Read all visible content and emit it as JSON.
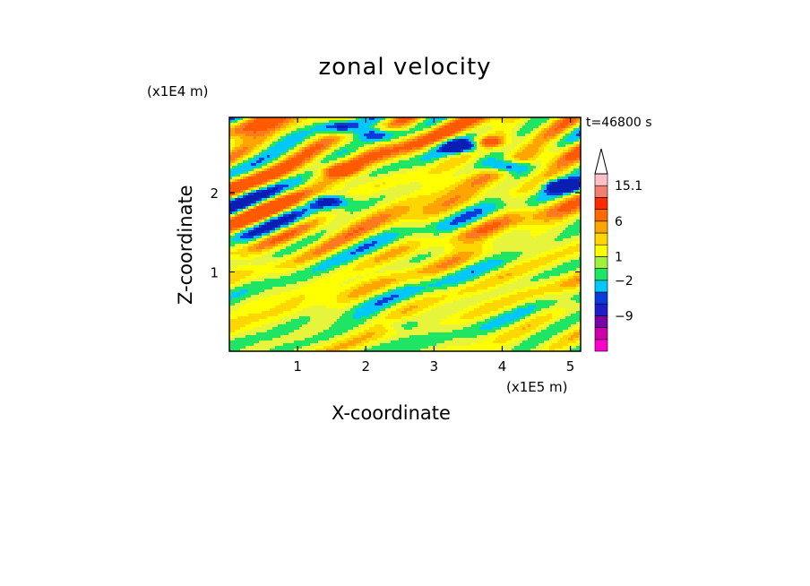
{
  "title": "zonal velocity",
  "time_label": "t=46800 s",
  "chart_data": {
    "type": "heatmap",
    "title": "zonal velocity",
    "xlabel": "X-coordinate",
    "ylabel": "Z-coordinate",
    "x_unit": "(x1E5 m)",
    "y_unit": "(x1E4 m)",
    "xlim": [
      0,
      5.15
    ],
    "ylim": [
      0,
      2.95
    ],
    "x_ticks": [
      1,
      2,
      3,
      4,
      5
    ],
    "y_ticks": [
      1,
      2
    ],
    "x_tick_labels": [
      "1",
      "2",
      "3",
      "4",
      "5"
    ],
    "y_tick_labels": [
      "1",
      "2"
    ],
    "colorbar": {
      "tick_labels": [
        "15.1",
        "6",
        "1",
        "−2",
        "−9"
      ],
      "colors": [
        "#ff00cc",
        "#cc00aa",
        "#7a00a8",
        "#1e1ec8",
        "#0a3cdc",
        "#00c8ff",
        "#1ee664",
        "#a0f03c",
        "#ffff00",
        "#ffd700",
        "#ffa500",
        "#ff6a00",
        "#ff2a00",
        "#f08070",
        "#ffc0c8"
      ],
      "top_arrow_color": "#ffffff"
    },
    "features": [
      {
        "x": 1.6,
        "z": 2.85,
        "kind": "negative"
      },
      {
        "x": 2.15,
        "z": 2.75,
        "kind": "negative"
      },
      {
        "x": 3.4,
        "z": 2.6,
        "kind": "strong-negative"
      },
      {
        "x": 4.05,
        "z": 2.35,
        "kind": "strong-negative"
      },
      {
        "x": 4.9,
        "z": 2.1,
        "kind": "strong-negative"
      },
      {
        "x": 3.8,
        "z": 2.65,
        "kind": "positive"
      },
      {
        "x": 1.6,
        "z": 2.3,
        "kind": "positive"
      },
      {
        "x": 1.45,
        "z": 1.9,
        "kind": "negative"
      },
      {
        "x": 2.5,
        "z": 0.35,
        "kind": "neutral"
      }
    ]
  }
}
